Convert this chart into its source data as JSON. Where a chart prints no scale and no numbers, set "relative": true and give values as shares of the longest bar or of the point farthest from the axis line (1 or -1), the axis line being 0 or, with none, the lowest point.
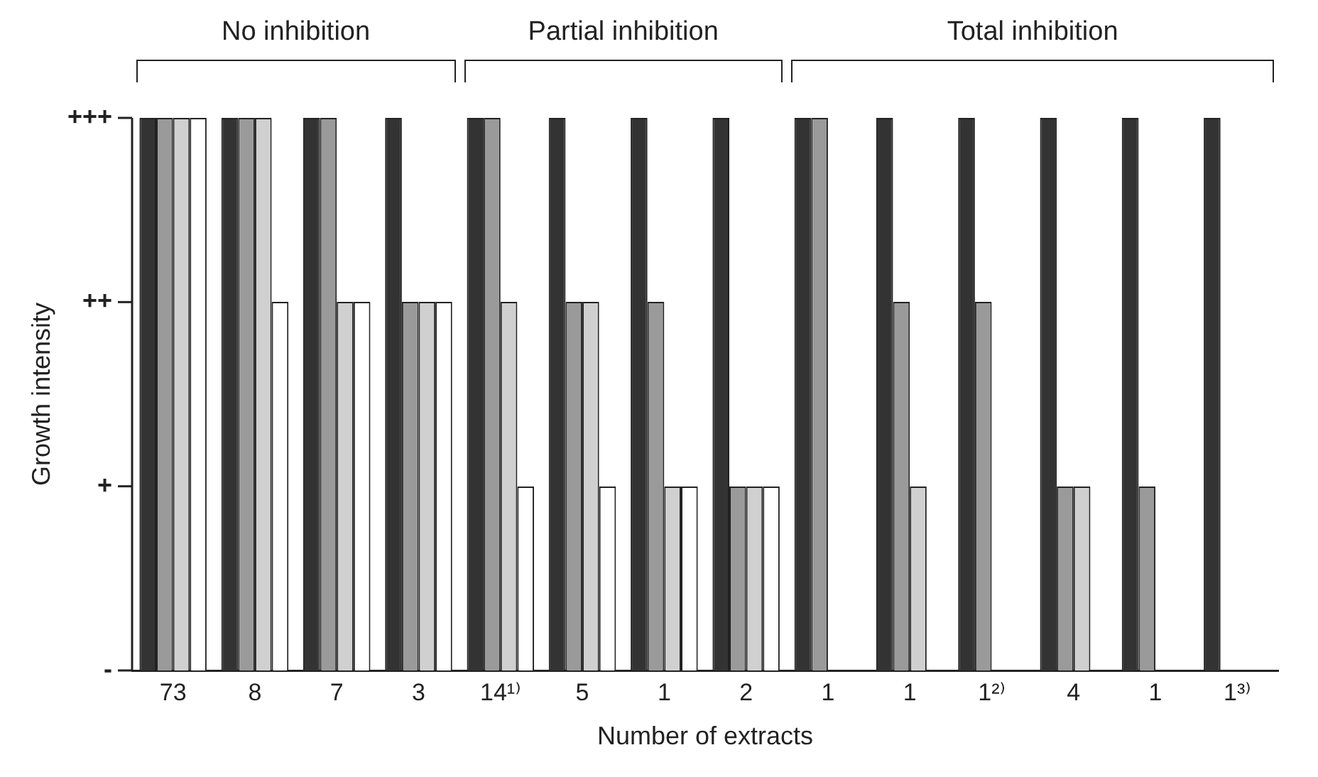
{
  "chart_data": {
    "type": "bar",
    "xlabel": "Number of extracts",
    "ylabel": "Growth intensity",
    "relative": true,
    "categories": [
      "73",
      "8",
      "7",
      "3",
      "14¹⁾",
      "5",
      "1",
      "2",
      "1",
      "1",
      "1²⁾",
      "4",
      "1",
      "1³⁾"
    ],
    "series": [
      {
        "color": "#333333",
        "values": [
          1,
          1,
          1,
          1,
          1,
          1,
          1,
          1,
          1,
          1,
          1,
          1,
          1,
          1
        ]
      },
      {
        "color": "#9a9a9a",
        "values": [
          1,
          1,
          1,
          0.667,
          1,
          0.667,
          0.667,
          0.333,
          1,
          0.667,
          0.667,
          0.333,
          0.333,
          0
        ]
      },
      {
        "color": "#d0d0d0",
        "values": [
          1,
          1,
          0.667,
          0.667,
          0.667,
          0.667,
          0.333,
          0.333,
          0,
          0.333,
          0,
          0.333,
          0,
          0
        ]
      },
      {
        "color": "#ffffff",
        "values": [
          1,
          0.667,
          0.667,
          0.667,
          0.333,
          0.333,
          0.333,
          0.333,
          0,
          0,
          0,
          0,
          0,
          0
        ]
      }
    ],
    "grid": false,
    "legend": false,
    "annotations": [
      "No inhibition",
      "Partial inhibition",
      "Total inhibition",
      "-",
      "+",
      "++",
      "+++"
    ]
  }
}
